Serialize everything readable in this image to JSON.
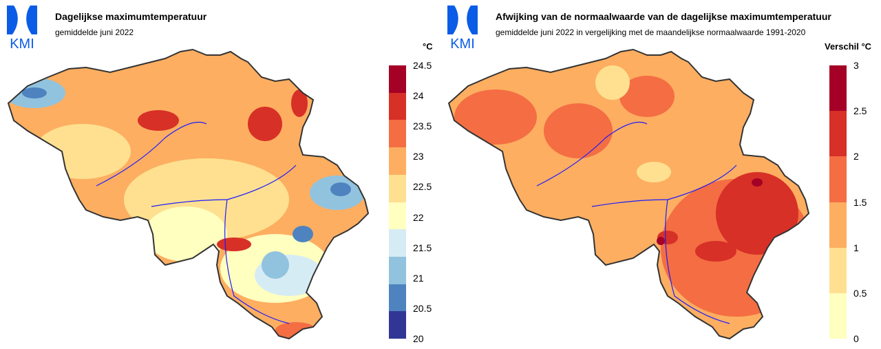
{
  "logo": {
    "text": "KMI",
    "color": "#0a5ce6"
  },
  "left": {
    "title": "Dagelijkse maximumtemperatuur",
    "subtitle": "gemiddelde juni 2022",
    "unit": "°C",
    "legend": {
      "ticks": [
        "24.5",
        "24",
        "23.5",
        "23",
        "22.5",
        "22",
        "21.5",
        "21",
        "20.5",
        "20"
      ],
      "colors": [
        "#a50026",
        "#d73027",
        "#f46d43",
        "#fdae61",
        "#fee090",
        "#ffffbf",
        "#d6ecf4",
        "#91c3df",
        "#4e83c0",
        "#313695"
      ]
    }
  },
  "right": {
    "title": "Afwijking van de normaalwaarde van de dagelijkse maximumtemperatuur",
    "subtitle": "gemiddelde juni 2022 in vergelijking met de maandelijkse normaalwaarde 1991-2020",
    "unit": "Verschil °C",
    "legend": {
      "ticks": [
        "3",
        "2.5",
        "2",
        "1.5",
        "1",
        "0.5",
        "0"
      ],
      "colors": [
        "#a50026",
        "#d73027",
        "#f46d43",
        "#fdae61",
        "#fee090",
        "#ffffbf"
      ]
    }
  }
}
